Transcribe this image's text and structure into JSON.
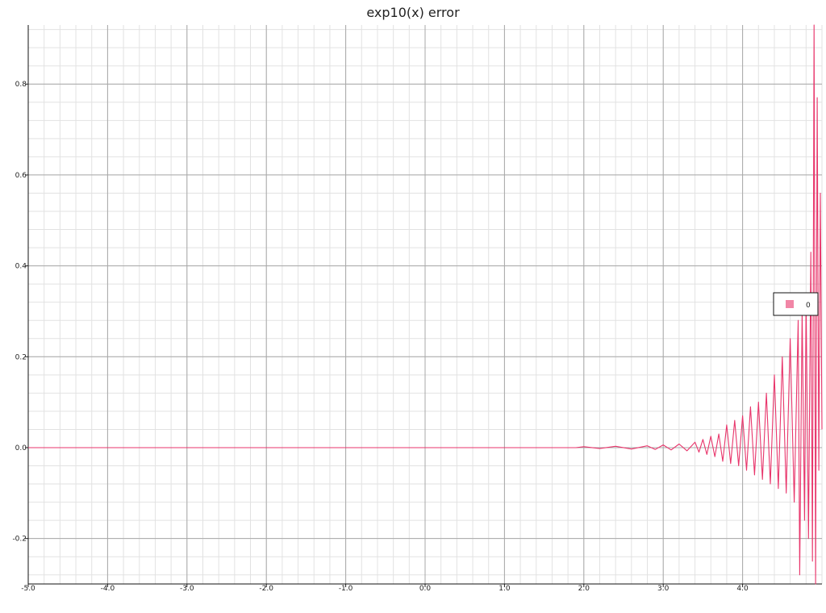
{
  "chart_data": {
    "type": "line",
    "title": "exp10(x) error",
    "xlabel": "",
    "ylabel": "",
    "xlim": [
      -5.0,
      5.0
    ],
    "ylim": [
      -0.3,
      0.93
    ],
    "x_ticks": [
      -5.0,
      -4.0,
      -3.0,
      -2.0,
      -1.0,
      0.0,
      1.0,
      2.0,
      3.0,
      4.0
    ],
    "x_tick_labels": [
      "-5.0",
      "-4.0",
      "-3.0",
      "-2.0",
      "-1.0",
      "0.0",
      "1.0",
      "2.0",
      "3.0",
      "4.0"
    ],
    "y_ticks": [
      -0.2,
      0.0,
      0.2,
      0.4,
      0.6,
      0.8
    ],
    "y_tick_labels": [
      "-0.2",
      "0.0",
      "0.2",
      "0.4",
      "0.6",
      "0.8"
    ],
    "grid": true,
    "legend": {
      "placement": "right",
      "entries": [
        "0"
      ]
    },
    "series": [
      {
        "name": "0",
        "color": "#e8356b",
        "x": [
          -5.0,
          -1.0,
          0.0,
          1.0,
          1.9,
          2.0,
          2.2,
          2.4,
          2.6,
          2.8,
          2.9,
          3.0,
          3.1,
          3.2,
          3.3,
          3.4,
          3.45,
          3.5,
          3.55,
          3.6,
          3.65,
          3.7,
          3.75,
          3.8,
          3.85,
          3.9,
          3.95,
          4.0,
          4.05,
          4.1,
          4.15,
          4.2,
          4.25,
          4.3,
          4.35,
          4.4,
          4.45,
          4.5,
          4.55,
          4.6,
          4.65,
          4.7,
          4.72,
          4.75,
          4.78,
          4.8,
          4.83,
          4.86,
          4.88,
          4.9,
          4.92,
          4.94,
          4.96,
          4.98,
          5.0
        ],
        "values": [
          0.0,
          0.0,
          0.0,
          0.0,
          0.0,
          0.002,
          -0.002,
          0.003,
          -0.003,
          0.004,
          -0.004,
          0.006,
          -0.005,
          0.008,
          -0.007,
          0.012,
          -0.01,
          0.018,
          -0.015,
          0.025,
          -0.02,
          0.03,
          -0.03,
          0.05,
          -0.035,
          0.06,
          -0.04,
          0.07,
          -0.05,
          0.09,
          -0.06,
          0.1,
          -0.07,
          0.12,
          -0.08,
          0.16,
          -0.09,
          0.2,
          -0.1,
          0.24,
          -0.12,
          0.28,
          -0.28,
          0.3,
          -0.16,
          0.33,
          -0.2,
          0.43,
          -0.25,
          0.93,
          -0.3,
          0.77,
          -0.05,
          0.56,
          0.04
        ]
      }
    ]
  }
}
